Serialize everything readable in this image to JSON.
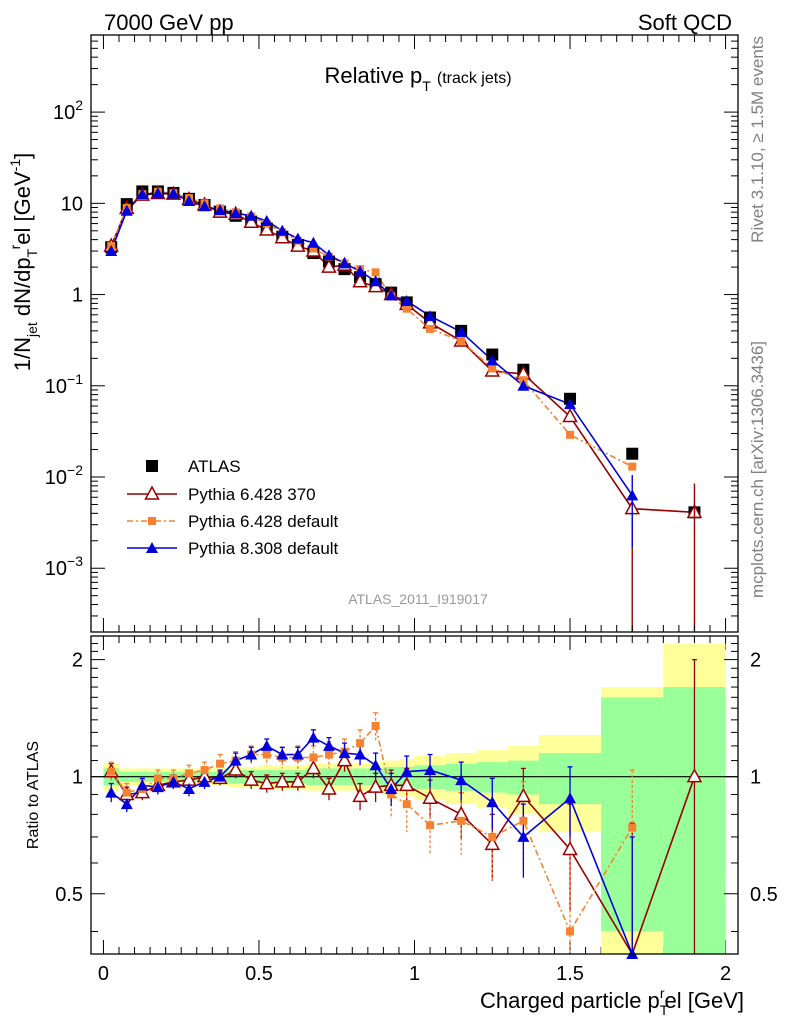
{
  "header": {
    "left": "7000 GeV pp",
    "right": "Soft QCD"
  },
  "side_labels": {
    "rivet": "Rivet 3.1.10, ≥ 1.5M events",
    "mcplots": "mcplots.cern.ch [arXiv:1306.3436]"
  },
  "analysis_label": "ATLAS_2011_I919017",
  "colors": {
    "atlas": "#000000",
    "pythia6_370": "#990000",
    "pythia6_default": "#f58231",
    "pythia8_default": "#0000dd",
    "band_inner": "#99ff99",
    "band_outer": "#ffff99"
  },
  "chart_data": [
    {
      "type": "scatter",
      "panel": "main",
      "title": "Relative p_T (track jets)",
      "title_main": "Relative p",
      "title_sub": "T",
      "title_small": "(track jets)",
      "ylabel": "1/N_jet dN/dp_T^rel [GeV^-1]",
      "ylabel_parts": {
        "a": "1/N",
        "a_sub": "jet",
        "b": " dN/dp",
        "b_sub": "T",
        "b_sup": "r",
        "c": "el [GeV",
        "c_sup": "-1",
        "d": "]"
      },
      "y_scale": "log",
      "ylim": [
        0.0002,
        700
      ],
      "xlim": [
        -0.04,
        2.04
      ],
      "y_tick_labels": [
        "10^-3",
        "10^-2",
        "10^-1",
        "1",
        "10",
        "10^2"
      ],
      "series": [
        {
          "name": "ATLAS",
          "x": [
            0.025,
            0.075,
            0.125,
            0.175,
            0.225,
            0.275,
            0.325,
            0.375,
            0.425,
            0.475,
            0.525,
            0.575,
            0.625,
            0.675,
            0.725,
            0.775,
            0.825,
            0.875,
            0.925,
            0.975,
            1.05,
            1.15,
            1.25,
            1.35,
            1.5,
            1.7,
            1.9
          ],
          "y": [
            3.3,
            9.8,
            13.5,
            13.5,
            13.0,
            11.2,
            9.6,
            8.1,
            7.3,
            6.3,
            5.3,
            4.3,
            3.5,
            2.85,
            2.3,
            1.9,
            1.55,
            1.3,
            1.05,
            0.82,
            0.56,
            0.4,
            0.22,
            0.15,
            0.072,
            0.018,
            0.0041
          ]
        },
        {
          "name": "Pythia 6.428 370",
          "x": [
            0.025,
            0.075,
            0.125,
            0.175,
            0.225,
            0.275,
            0.325,
            0.375,
            0.425,
            0.475,
            0.525,
            0.575,
            0.625,
            0.675,
            0.725,
            0.775,
            0.825,
            0.875,
            0.925,
            0.975,
            1.05,
            1.15,
            1.25,
            1.35,
            1.5,
            1.7,
            1.9
          ],
          "y": [
            3.4,
            8.8,
            12.3,
            12.8,
            12.6,
            11.0,
            9.6,
            8.0,
            7.6,
            6.2,
            5.1,
            4.2,
            3.4,
            3.0,
            2.0,
            2.1,
            1.38,
            1.22,
            1.0,
            0.78,
            0.49,
            0.31,
            0.145,
            0.135,
            0.046,
            0.0045,
            0.0041
          ]
        },
        {
          "name": "Pythia 6.428 default",
          "x": [
            0.025,
            0.075,
            0.125,
            0.175,
            0.225,
            0.275,
            0.325,
            0.375,
            0.425,
            0.475,
            0.525,
            0.575,
            0.625,
            0.675,
            0.725,
            0.775,
            0.825,
            0.875,
            0.925,
            0.975,
            1.05,
            1.15,
            1.25,
            1.35,
            1.5,
            1.7
          ],
          "y": [
            3.4,
            8.9,
            12.6,
            13.4,
            12.9,
            11.4,
            10.0,
            8.8,
            8.0,
            7.2,
            6.0,
            4.8,
            3.9,
            3.2,
            2.6,
            2.2,
            1.9,
            1.75,
            0.95,
            0.7,
            0.42,
            0.31,
            0.155,
            0.115,
            0.029,
            0.013
          ]
        },
        {
          "name": "Pythia 8.308 default",
          "x": [
            0.025,
            0.075,
            0.125,
            0.175,
            0.225,
            0.275,
            0.325,
            0.375,
            0.425,
            0.475,
            0.525,
            0.575,
            0.625,
            0.675,
            0.725,
            0.775,
            0.825,
            0.875,
            0.925,
            0.975,
            1.05,
            1.15,
            1.25,
            1.35,
            1.5,
            1.7
          ],
          "y": [
            3.0,
            8.3,
            12.6,
            12.9,
            12.8,
            10.6,
            9.3,
            8.4,
            7.8,
            7.3,
            6.4,
            5.0,
            4.1,
            3.7,
            2.7,
            2.2,
            1.8,
            1.4,
            0.98,
            0.85,
            0.58,
            0.39,
            0.19,
            0.1,
            0.063,
            0.0063
          ]
        }
      ]
    },
    {
      "type": "scatter",
      "panel": "ratio",
      "ylabel": "Ratio to ATLAS",
      "xlabel": "Charged particle p_T^rel [GeV]",
      "xlabel_parts": {
        "a": "Charged particle p",
        "sub": "T",
        "sup": "r",
        "b": "el [GeV]"
      },
      "ylim": [
        0.35,
        2.3
      ],
      "xlim": [
        -0.04,
        2.04
      ],
      "x_tick_labels": [
        "0",
        "0.5",
        "1",
        "1.5",
        "2"
      ],
      "y_tick_labels": [
        "0.5",
        "1",
        "2"
      ],
      "band_edges": [
        0,
        0.05,
        0.1,
        0.15,
        0.2,
        0.25,
        0.3,
        0.35,
        0.4,
        0.45,
        0.5,
        0.55,
        0.6,
        0.65,
        0.7,
        0.75,
        0.8,
        0.85,
        0.9,
        0.95,
        1.0,
        1.1,
        1.2,
        1.3,
        1.4,
        1.6,
        1.8,
        2.0
      ],
      "band_inner": [
        0.05,
        0.03,
        0.03,
        0.03,
        0.03,
        0.03,
        0.03,
        0.03,
        0.04,
        0.04,
        0.04,
        0.04,
        0.04,
        0.05,
        0.05,
        0.05,
        0.05,
        0.05,
        0.06,
        0.06,
        0.07,
        0.08,
        0.09,
        0.1,
        0.15,
        0.6,
        0.7
      ],
      "band_outer": [
        0.08,
        0.05,
        0.05,
        0.05,
        0.05,
        0.05,
        0.05,
        0.05,
        0.06,
        0.06,
        0.07,
        0.07,
        0.07,
        0.08,
        0.08,
        0.08,
        0.08,
        0.09,
        0.1,
        0.11,
        0.13,
        0.15,
        0.17,
        0.2,
        0.28,
        0.7,
        1.2
      ],
      "series": [
        {
          "name": "Pythia 6.428 370",
          "x": [
            0.025,
            0.075,
            0.125,
            0.175,
            0.225,
            0.275,
            0.325,
            0.375,
            0.425,
            0.475,
            0.525,
            0.575,
            0.625,
            0.675,
            0.725,
            0.775,
            0.825,
            0.875,
            0.925,
            0.975,
            1.05,
            1.15,
            1.25,
            1.35,
            1.5,
            1.7,
            1.9
          ],
          "y": [
            1.03,
            0.9,
            0.91,
            0.95,
            0.97,
            0.98,
            1.0,
            0.99,
            1.04,
            0.98,
            0.96,
            0.97,
            0.97,
            1.05,
            0.93,
            1.1,
            0.89,
            0.94,
            0.95,
            0.95,
            0.88,
            0.8,
            0.67,
            0.89,
            0.65,
            0.26,
            1.0
          ],
          "err": [
            0.05,
            0.04,
            0.04,
            0.04,
            0.04,
            0.04,
            0.04,
            0.04,
            0.05,
            0.05,
            0.05,
            0.05,
            0.05,
            0.06,
            0.06,
            0.07,
            0.07,
            0.08,
            0.09,
            0.1,
            0.1,
            0.11,
            0.13,
            0.16,
            0.2,
            0.5,
            1.0
          ]
        },
        {
          "name": "Pythia 6.428 default",
          "x": [
            0.025,
            0.075,
            0.125,
            0.175,
            0.225,
            0.275,
            0.325,
            0.375,
            0.425,
            0.475,
            0.525,
            0.575,
            0.625,
            0.675,
            0.725,
            0.775,
            0.825,
            0.875,
            0.925,
            0.975,
            1.05,
            1.15,
            1.25,
            1.35,
            1.5,
            1.7
          ],
          "y": [
            1.03,
            0.91,
            0.93,
            0.99,
            0.99,
            1.02,
            1.04,
            1.08,
            1.1,
            1.14,
            1.14,
            1.12,
            1.12,
            1.12,
            1.14,
            1.16,
            1.22,
            1.35,
            0.9,
            0.85,
            0.75,
            0.77,
            0.7,
            0.77,
            0.4,
            0.74
          ],
          "err": [
            0.06,
            0.05,
            0.05,
            0.05,
            0.05,
            0.05,
            0.05,
            0.06,
            0.06,
            0.06,
            0.07,
            0.07,
            0.08,
            0.08,
            0.09,
            0.09,
            0.1,
            0.11,
            0.12,
            0.13,
            0.12,
            0.14,
            0.16,
            0.2,
            0.25,
            0.3
          ]
        },
        {
          "name": "Pythia 8.308 default",
          "x": [
            0.025,
            0.075,
            0.125,
            0.175,
            0.225,
            0.275,
            0.325,
            0.375,
            0.425,
            0.475,
            0.525,
            0.575,
            0.625,
            0.675,
            0.725,
            0.775,
            0.825,
            0.875,
            0.925,
            0.975,
            1.05,
            1.15,
            1.25,
            1.35,
            1.5,
            1.7
          ],
          "y": [
            0.91,
            0.85,
            0.95,
            0.94,
            0.97,
            0.93,
            0.97,
            1.0,
            1.1,
            1.14,
            1.2,
            1.14,
            1.14,
            1.26,
            1.2,
            1.15,
            1.14,
            1.07,
            0.93,
            1.03,
            1.04,
            0.98,
            0.86,
            0.7,
            0.88,
            0.35
          ],
          "err": [
            0.05,
            0.04,
            0.04,
            0.04,
            0.04,
            0.04,
            0.04,
            0.04,
            0.05,
            0.05,
            0.05,
            0.05,
            0.05,
            0.06,
            0.06,
            0.07,
            0.07,
            0.08,
            0.09,
            0.1,
            0.1,
            0.11,
            0.13,
            0.15,
            0.18,
            0.35
          ]
        }
      ]
    }
  ]
}
